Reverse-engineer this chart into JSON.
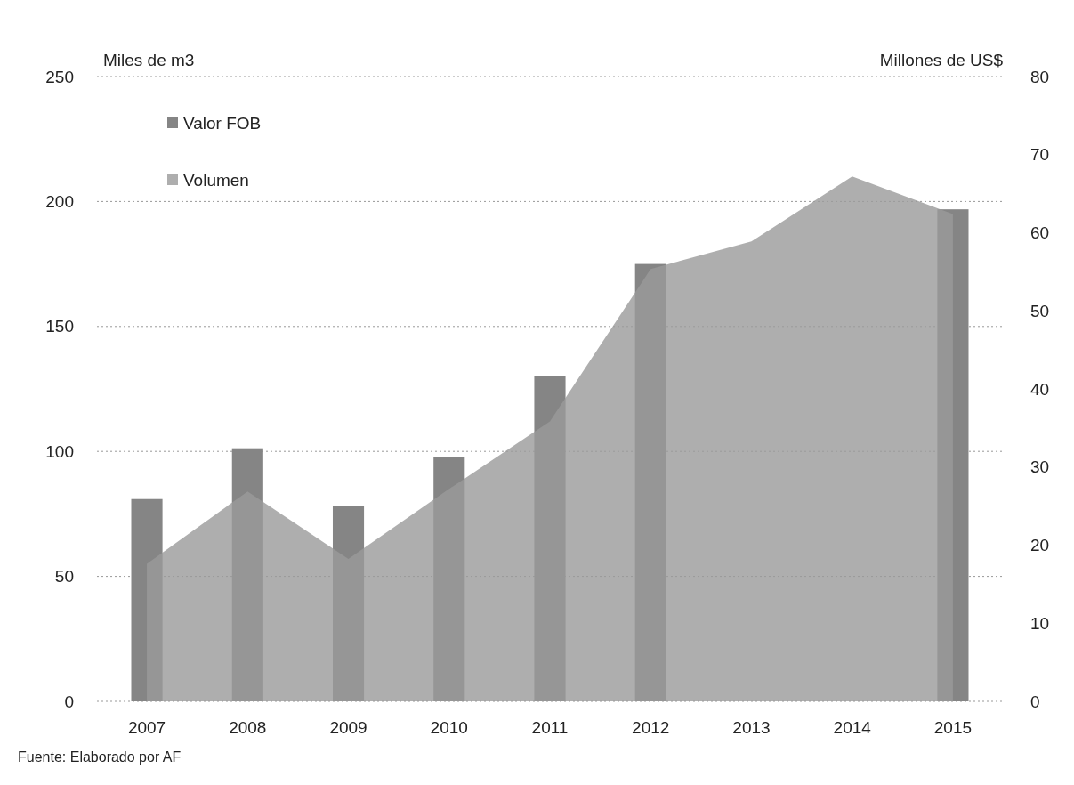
{
  "chart_data": {
    "type": "bar",
    "ylabel": "Miles de m3",
    "y2label": "Millones de US$",
    "categories": [
      "2007",
      "2008",
      "2009",
      "2010",
      "2011",
      "2012",
      "2013",
      "2014",
      "2015"
    ],
    "series": [
      {
        "name": "Valor FOB",
        "axis": "y2",
        "color": "#858585",
        "values": [
          25.9,
          32.4,
          25.0,
          31.3,
          41.6,
          56.0,
          null,
          null,
          63.0
        ]
      },
      {
        "name": "Volumen",
        "type": "area",
        "color": "#9a9a9a",
        "values": [
          55,
          84,
          57,
          85,
          112,
          173,
          184,
          210,
          195
        ]
      }
    ],
    "ylim": [
      0,
      250
    ],
    "yticks": [
      0,
      50,
      100,
      150,
      200,
      250
    ],
    "y2lim": [
      0,
      80
    ],
    "y2ticks": [
      0,
      10,
      20,
      30,
      40,
      50,
      60,
      70,
      80
    ],
    "grid": "y",
    "legend": "top left",
    "annotations": [
      "Fuente: Elaborado por AF"
    ]
  }
}
